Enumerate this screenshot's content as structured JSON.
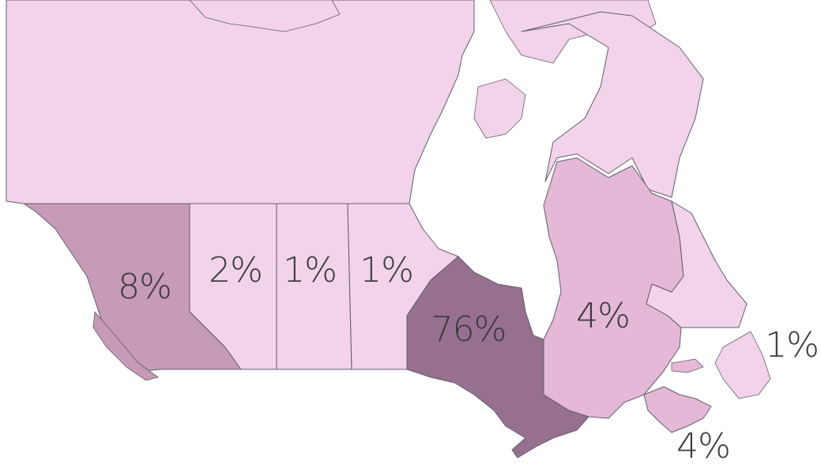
{
  "map": {
    "regions": [
      {
        "id": "north",
        "label": "",
        "color": "#f2d3ea"
      },
      {
        "id": "bc",
        "label": "8%",
        "color": "#c79ab8"
      },
      {
        "id": "ab",
        "label": "2%",
        "color": "#f2d3ea"
      },
      {
        "id": "sk",
        "label": "1%",
        "color": "#f2d3ea"
      },
      {
        "id": "mb",
        "label": "1%",
        "color": "#f2d3ea"
      },
      {
        "id": "on",
        "label": "76%",
        "color": "#977090"
      },
      {
        "id": "qc",
        "label": "4%",
        "color": "#e4b8d6"
      },
      {
        "id": "nl",
        "label": "1%",
        "color": "#f2d3ea"
      },
      {
        "id": "maritimes",
        "label": "4%",
        "color": "#e4b8d6"
      }
    ],
    "colors": {
      "background": "#ffffff",
      "border": "#5f5f68",
      "label": "#3b3b3f"
    }
  }
}
